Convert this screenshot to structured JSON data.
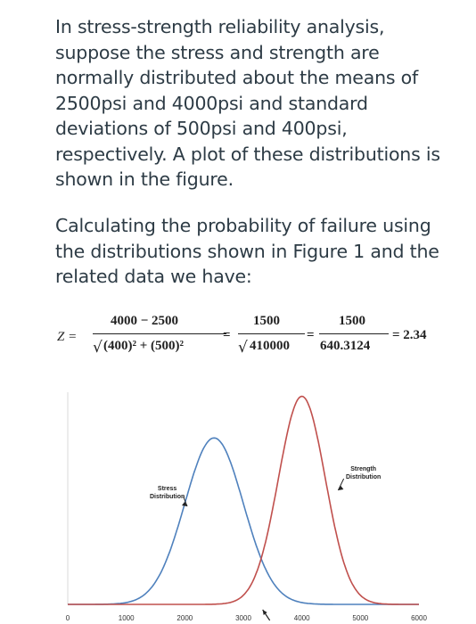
{
  "text": {
    "paragraph1": "In stress-strength reliability analysis, suppose the stress and strength are normally distributed about the means of 2500psi and 4000psi and standard deviations of 500psi and 400psi, respectively. A plot of these distributions is shown in the figure.",
    "paragraph2": "Calculating the probability of failure using the distributions shown in Figure 1 and the related data we have:"
  },
  "equation": {
    "lhs": "Z =",
    "num1": "4000 − 2500",
    "den1_sqrt": "√",
    "den1": "(400)² + (500)²",
    "eq2": "=",
    "num2": "1500",
    "den2_sqrt": "√",
    "den2": "410000",
    "eq3": "=",
    "num3": "1500",
    "den3": "640.3124",
    "result": "= 2.34"
  },
  "chart_data": {
    "type": "line",
    "x_ticks": [
      "0",
      "1000",
      "2000",
      "3000",
      "4000",
      "5000",
      "6000"
    ],
    "xlim": [
      0,
      6000
    ],
    "series": [
      {
        "name": "Stress Distribution",
        "mean": 2500,
        "std": 500,
        "color": "#4f81bd"
      },
      {
        "name": "Strength Distribution",
        "mean": 4000,
        "std": 400,
        "color": "#c0504d"
      }
    ],
    "annotations": [
      {
        "text_lines": [
          "Stress",
          "Distribution"
        ],
        "x": 1700,
        "target_x": 1950
      },
      {
        "text_lines": [
          "Strength",
          "Distribution"
        ],
        "x": 5050,
        "target_x": 4620
      }
    ],
    "grid": false
  }
}
